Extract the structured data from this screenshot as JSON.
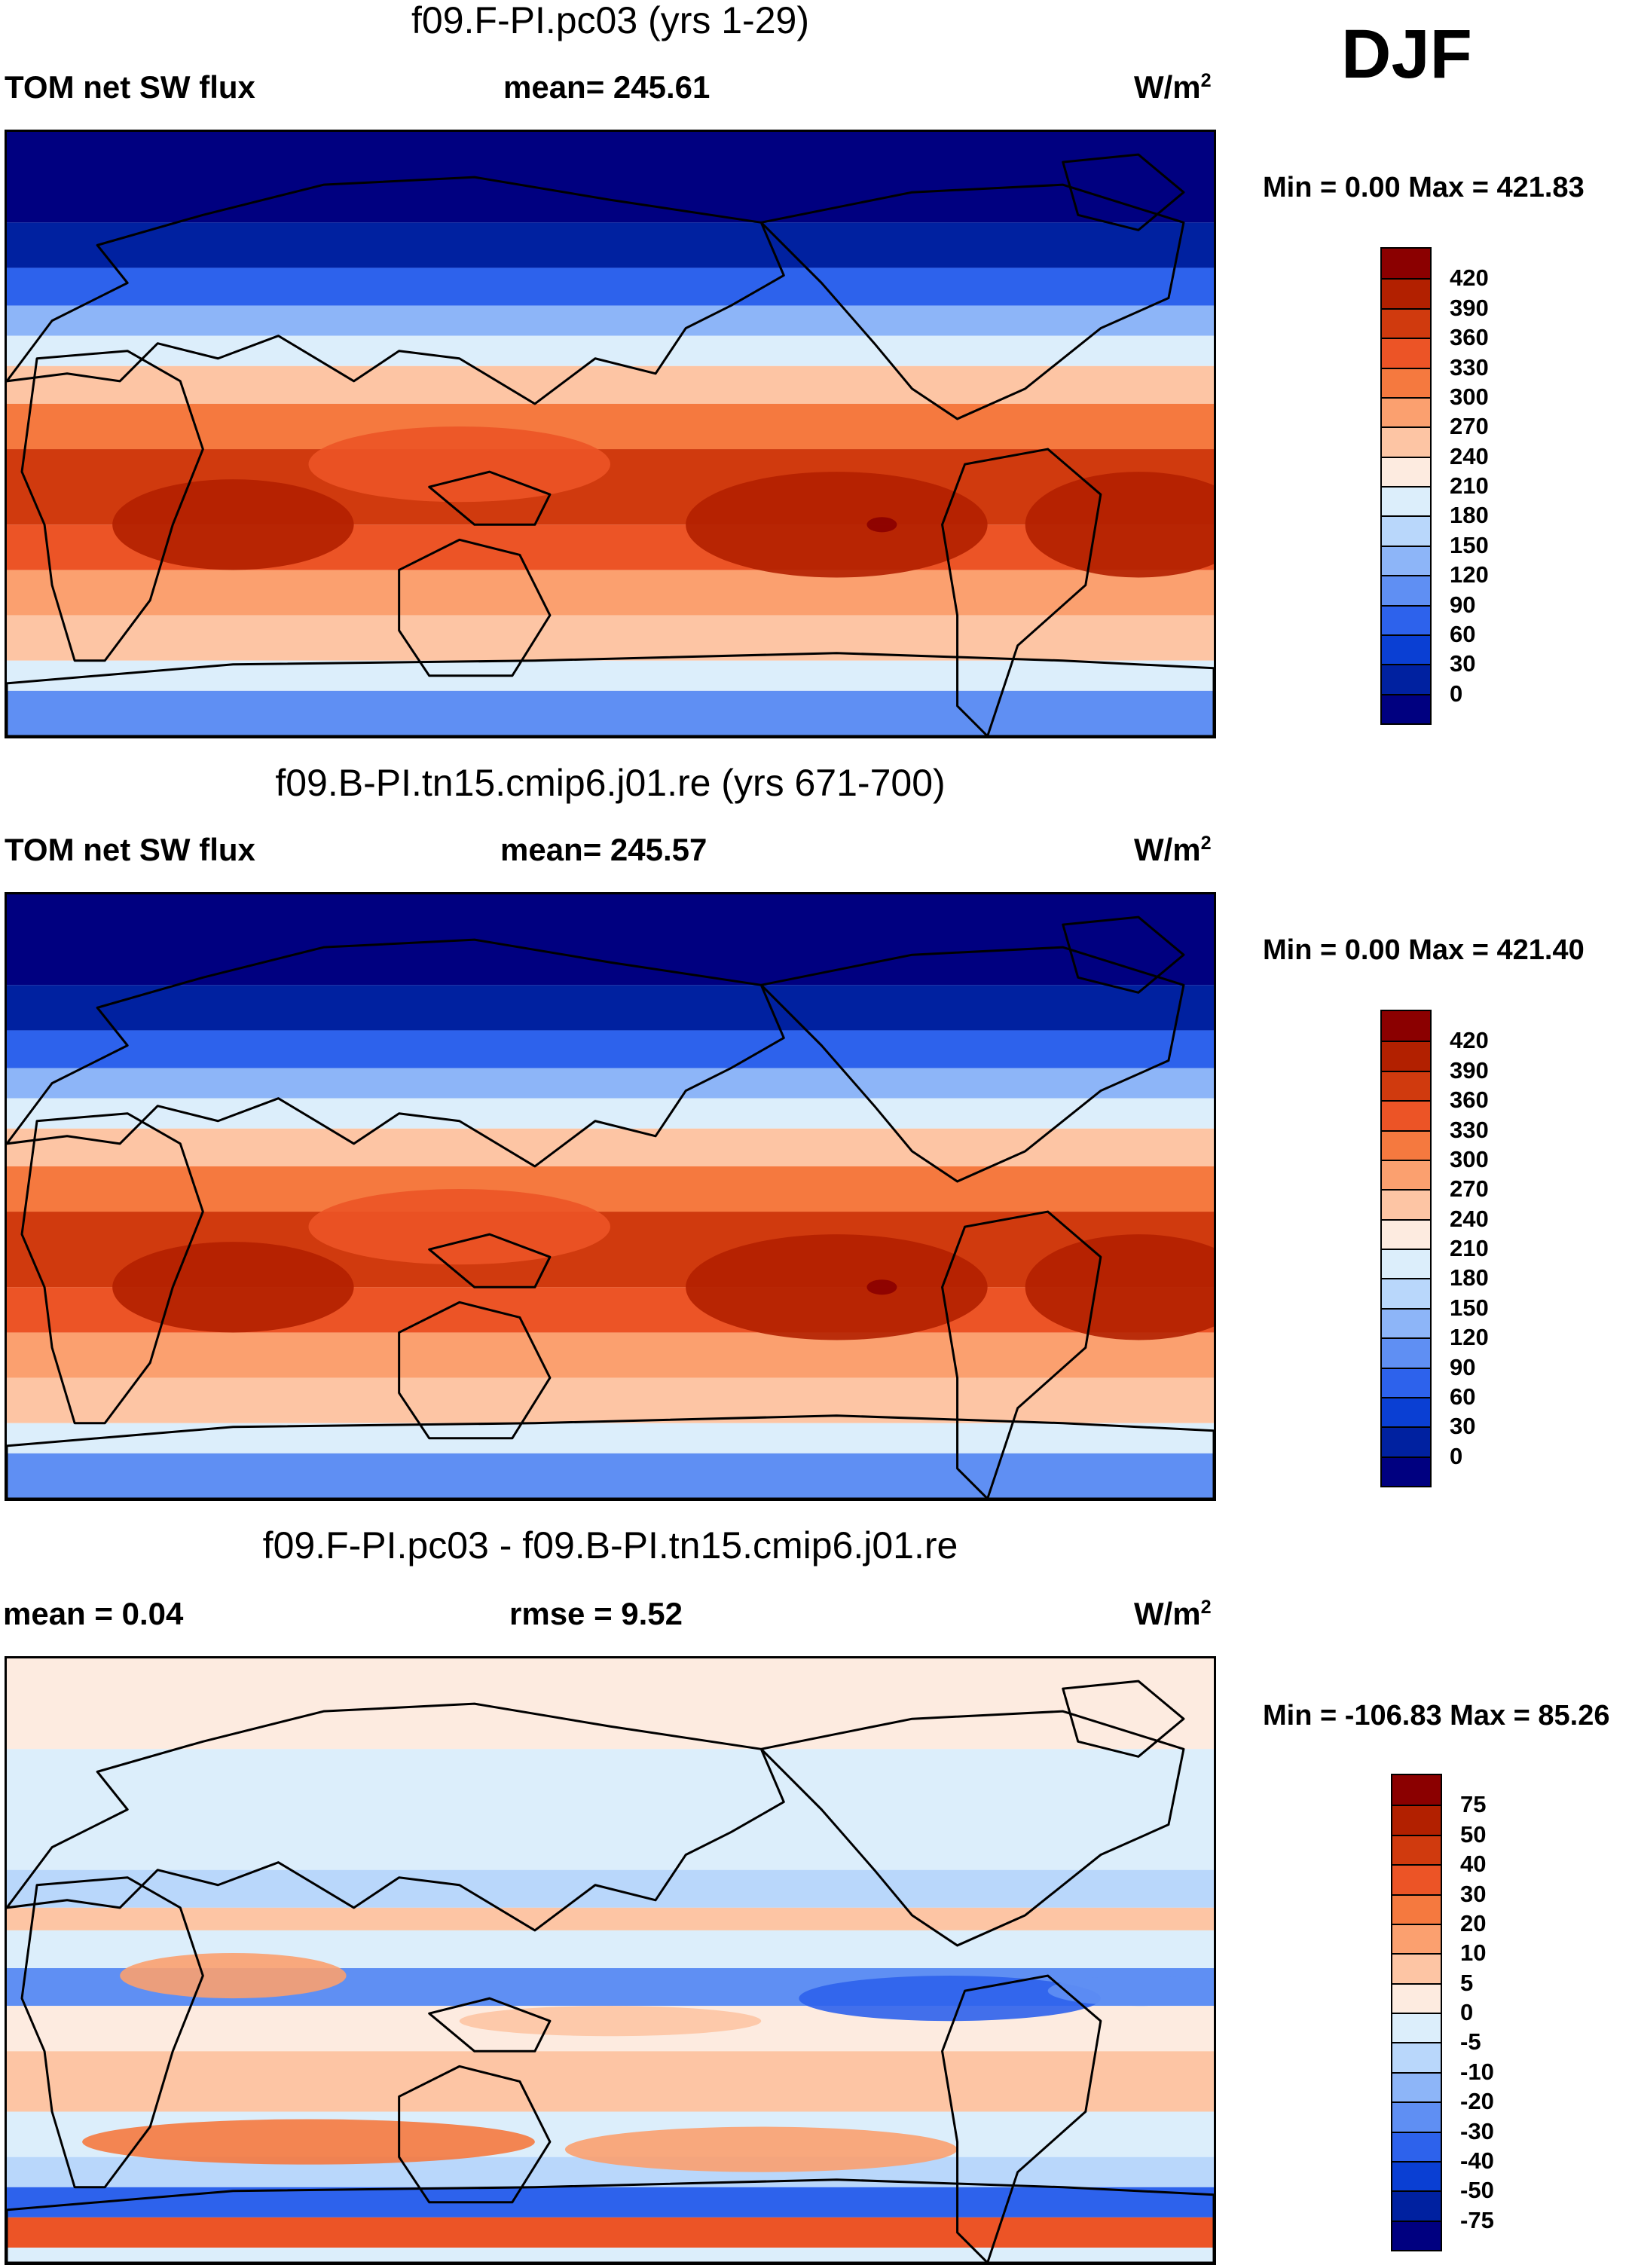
{
  "season": "DJF",
  "panels": [
    {
      "title": "f09.F-PI.pc03 (yrs 1-29)",
      "left_label": "TOM net SW flux",
      "center_label": "mean= 245.61",
      "units_base": "W/m",
      "units_exp": "2",
      "minmax": "Min =    0.00 Max = 421.83",
      "map_kind": "abs",
      "colorbar": {
        "colors": [
          "#8b0000",
          "#b22000",
          "#d03a0e",
          "#ec5426",
          "#f5793f",
          "#fba06f",
          "#fdc5a4",
          "#fdebe0",
          "#dceefb",
          "#b9d7fb",
          "#8db5f8",
          "#5f8ff3",
          "#2d62ec",
          "#0a3fd3",
          "#0021a0",
          "#000080"
        ],
        "labels": [
          "420",
          "390",
          "360",
          "330",
          "300",
          "270",
          "240",
          "210",
          "180",
          "150",
          "120",
          "90",
          "60",
          "30",
          "0"
        ]
      }
    },
    {
      "title": "f09.B-PI.tn15.cmip6.j01.re (yrs 671-700)",
      "left_label": "TOM net SW flux",
      "center_label": "mean= 245.57",
      "units_base": "W/m",
      "units_exp": "2",
      "minmax": "Min =    0.00 Max = 421.40",
      "map_kind": "abs",
      "colorbar": {
        "colors": [
          "#8b0000",
          "#b22000",
          "#d03a0e",
          "#ec5426",
          "#f5793f",
          "#fba06f",
          "#fdc5a4",
          "#fdebe0",
          "#dceefb",
          "#b9d7fb",
          "#8db5f8",
          "#5f8ff3",
          "#2d62ec",
          "#0a3fd3",
          "#0021a0",
          "#000080"
        ],
        "labels": [
          "420",
          "390",
          "360",
          "330",
          "300",
          "270",
          "240",
          "210",
          "180",
          "150",
          "120",
          "90",
          "60",
          "30",
          "0"
        ]
      }
    },
    {
      "title": "f09.F-PI.pc03 - f09.B-PI.tn15.cmip6.j01.re",
      "left_label": "mean =    0.04",
      "center_label": "rmse =    9.52",
      "units_base": "W/m",
      "units_exp": "2",
      "minmax": "Min = -106.83 Max =  85.26",
      "map_kind": "diff",
      "colorbar": {
        "colors": [
          "#8b0000",
          "#b22000",
          "#d03a0e",
          "#ec5426",
          "#f5793f",
          "#fba06f",
          "#fdc5a4",
          "#fdebe0",
          "#dceefb",
          "#b9d7fb",
          "#8db5f8",
          "#5f8ff3",
          "#2d62ec",
          "#0a3fd3",
          "#0021a0",
          "#000080"
        ],
        "labels": [
          "75",
          "50",
          "40",
          "30",
          "20",
          "10",
          "5",
          "0",
          "-5",
          "-10",
          "-20",
          "-30",
          "-40",
          "-50",
          "-75"
        ]
      }
    }
  ],
  "chart_data": [
    {
      "type": "heatmap",
      "title": "f09.F-PI.pc03 (yrs 1-29)",
      "variable": "TOM net SW flux",
      "season": "DJF",
      "mean": 245.61,
      "min": 0.0,
      "max": 421.83,
      "units": "W/m2",
      "colorbar_levels": [
        0,
        30,
        60,
        90,
        120,
        150,
        180,
        210,
        240,
        270,
        300,
        330,
        360,
        390,
        420
      ]
    },
    {
      "type": "heatmap",
      "title": "f09.B-PI.tn15.cmip6.j01.re (yrs 671-700)",
      "variable": "TOM net SW flux",
      "season": "DJF",
      "mean": 245.57,
      "min": 0.0,
      "max": 421.4,
      "units": "W/m2",
      "colorbar_levels": [
        0,
        30,
        60,
        90,
        120,
        150,
        180,
        210,
        240,
        270,
        300,
        330,
        360,
        390,
        420
      ]
    },
    {
      "type": "heatmap",
      "title": "f09.F-PI.pc03 - f09.B-PI.tn15.cmip6.j01.re",
      "variable": "TOM net SW flux difference",
      "season": "DJF",
      "mean": 0.04,
      "rmse": 9.52,
      "min": -106.83,
      "max": 85.26,
      "units": "W/m2",
      "colorbar_levels": [
        -75,
        -50,
        -40,
        -30,
        -20,
        -10,
        -5,
        0,
        5,
        10,
        20,
        30,
        40,
        50,
        75
      ]
    }
  ]
}
